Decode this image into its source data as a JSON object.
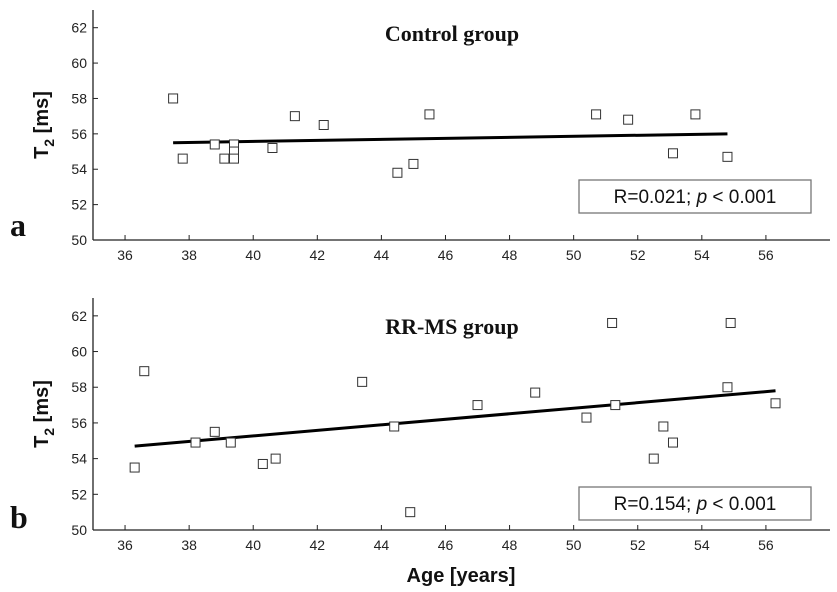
{
  "figure": {
    "xlabel": "Age  [years]"
  },
  "chart_data": [
    {
      "type": "scatter",
      "panel_label": "a",
      "title": "Control group",
      "ylabel": "T",
      "ylabel_sub": "2",
      "ylabel_unit": " [ms]",
      "xlabel": "Age  [years]",
      "xlim": [
        35,
        58
      ],
      "ylim": [
        50,
        63
      ],
      "xticks": [
        36,
        38,
        40,
        42,
        44,
        46,
        48,
        50,
        52,
        54,
        56
      ],
      "yticks": [
        50,
        52,
        54,
        56,
        58,
        60,
        62
      ],
      "points": [
        [
          37.5,
          58.0
        ],
        [
          37.8,
          54.6
        ],
        [
          38.8,
          55.4
        ],
        [
          39.1,
          54.6
        ],
        [
          39.4,
          55.4
        ],
        [
          39.4,
          55.0
        ],
        [
          39.4,
          54.6
        ],
        [
          40.6,
          55.2
        ],
        [
          41.3,
          57.0
        ],
        [
          42.2,
          56.5
        ],
        [
          44.5,
          53.8
        ],
        [
          45.0,
          54.3
        ],
        [
          45.5,
          57.1
        ],
        [
          50.7,
          57.1
        ],
        [
          51.7,
          56.8
        ],
        [
          53.1,
          54.9
        ],
        [
          53.8,
          57.1
        ],
        [
          54.8,
          54.7
        ]
      ],
      "fit_line": {
        "x": [
          37.5,
          54.8
        ],
        "y": [
          55.5,
          56.0
        ]
      },
      "annotation": {
        "prefix": "R=0.021;  ",
        "italic": "p",
        "suffix": " < 0.001"
      },
      "grid": false
    },
    {
      "type": "scatter",
      "panel_label": "b",
      "title": "RR-MS group",
      "ylabel": "T",
      "ylabel_sub": "2",
      "ylabel_unit": " [ms]",
      "xlabel": "Age  [years]",
      "xlim": [
        35,
        58
      ],
      "ylim": [
        50,
        63
      ],
      "xticks": [
        36,
        38,
        40,
        42,
        44,
        46,
        48,
        50,
        52,
        54,
        56
      ],
      "yticks": [
        50,
        52,
        54,
        56,
        58,
        60,
        62
      ],
      "points": [
        [
          36.3,
          53.5
        ],
        [
          36.6,
          58.9
        ],
        [
          38.2,
          54.9
        ],
        [
          38.8,
          55.5
        ],
        [
          39.3,
          54.9
        ],
        [
          40.3,
          53.7
        ],
        [
          40.7,
          54.0
        ],
        [
          43.4,
          58.3
        ],
        [
          44.4,
          55.8
        ],
        [
          44.9,
          51.0
        ],
        [
          47.0,
          57.0
        ],
        [
          48.8,
          57.7
        ],
        [
          50.4,
          56.3
        ],
        [
          51.2,
          61.6
        ],
        [
          51.3,
          57.0
        ],
        [
          52.5,
          54.0
        ],
        [
          52.8,
          55.8
        ],
        [
          53.1,
          54.9
        ],
        [
          54.8,
          58.0
        ],
        [
          54.9,
          61.6
        ],
        [
          56.3,
          57.1
        ]
      ],
      "fit_line": {
        "x": [
          36.3,
          56.3
        ],
        "y": [
          54.7,
          57.8
        ]
      },
      "annotation": {
        "prefix": "R=0.154;  ",
        "italic": "p",
        "suffix": " < 0.001"
      },
      "grid": false
    }
  ]
}
